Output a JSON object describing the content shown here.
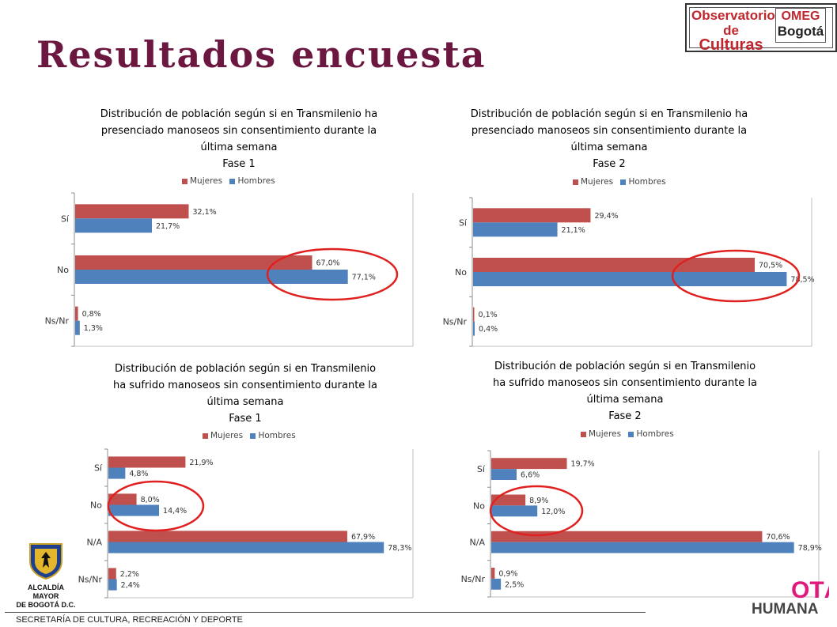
{
  "page": {
    "title": "Resultados encuesta",
    "footer": "SECRETARÍA DE CULTURA, RECREACIÓN Y DEPORTE"
  },
  "logos": {
    "observatorio_line1": "Observatorio",
    "observatorio_line2a": "de ",
    "observatorio_line2b": "Culturas",
    "omeg_line1": "OMEG",
    "omeg_line2": "Bogotá",
    "alcaldia_line1": "ALCALDÍA MAYOR",
    "alcaldia_line2": "DE BOGOTÁ D.C.",
    "humana_top": "OTÁ",
    "humana_bottom": "HUMANA"
  },
  "colors": {
    "mujeres": "#c0504d",
    "hombres": "#4f81bd",
    "highlight": "#e0201f",
    "title": "#6b1740"
  },
  "chart_data": [
    {
      "type": "bar",
      "orientation": "horizontal",
      "title_lines": [
        "Distribución de población según si en Transmilenio ha",
        "presenciado manoseos sin consentimiento durante la",
        "última semana",
        "Fase 1"
      ],
      "categories": [
        "Sí",
        "No",
        "Ns/Nr"
      ],
      "series": [
        {
          "name": "Mujeres",
          "values": [
            32.1,
            67.0,
            0.8
          ],
          "labels": [
            "32,1%",
            "67,0%",
            "0,8%"
          ]
        },
        {
          "name": "Hombres",
          "values": [
            21.7,
            77.1,
            1.3
          ],
          "labels": [
            "21,7%",
            "77,1%",
            "1,3%"
          ]
        }
      ],
      "legend": "top",
      "highlighted_category": "No"
    },
    {
      "type": "bar",
      "orientation": "horizontal",
      "title_lines": [
        "Distribución de población según si en Transmilenio ha",
        "presenciado manoseos sin consentimiento durante la",
        "última semana",
        "Fase 2"
      ],
      "categories": [
        "Sí",
        "No",
        "Ns/Nr"
      ],
      "series": [
        {
          "name": "Mujeres",
          "values": [
            29.4,
            70.5,
            0.1
          ],
          "labels": [
            "29,4%",
            "70,5%",
            "0,1%"
          ]
        },
        {
          "name": "Hombres",
          "values": [
            21.1,
            78.5,
            0.4
          ],
          "labels": [
            "21,1%",
            "78,5%",
            "0,4%"
          ]
        }
      ],
      "legend": "top",
      "highlighted_category": "No"
    },
    {
      "type": "bar",
      "orientation": "horizontal",
      "title_lines": [
        "Distribución de población según si en Transmilenio",
        "ha sufrido manoseos sin consentimiento durante la",
        "última semana",
        "Fase 1"
      ],
      "categories": [
        "Sí",
        "No",
        "N/A",
        "Ns/Nr"
      ],
      "series": [
        {
          "name": "Mujeres",
          "values": [
            21.9,
            8.0,
            67.9,
            2.2
          ],
          "labels": [
            "21,9%",
            "8,0%",
            "67,9%",
            "2,2%"
          ]
        },
        {
          "name": "Hombres",
          "values": [
            4.8,
            14.4,
            78.3,
            2.4
          ],
          "labels": [
            "4,8%",
            "14,4%",
            "78,3%",
            "2,4%"
          ]
        }
      ],
      "legend": "top",
      "highlighted_category": "No"
    },
    {
      "type": "bar",
      "orientation": "horizontal",
      "title_lines": [
        "Distribución de población según si en Transmilenio",
        "ha sufrido manoseos sin consentimiento durante la",
        "última semana",
        "Fase 2"
      ],
      "categories": [
        "Sí",
        "No",
        "N/A",
        "Ns/Nr"
      ],
      "series": [
        {
          "name": "Mujeres",
          "values": [
            19.7,
            8.9,
            70.6,
            0.9
          ],
          "labels": [
            "19,7%",
            "8,9%",
            "70,6%",
            "0,9%"
          ]
        },
        {
          "name": "Hombres",
          "values": [
            6.6,
            12.0,
            78.9,
            2.5
          ],
          "labels": [
            "6,6%",
            "12,0%",
            "78,9%",
            "2,5%"
          ]
        }
      ],
      "legend": "top",
      "highlighted_category": "No"
    }
  ]
}
